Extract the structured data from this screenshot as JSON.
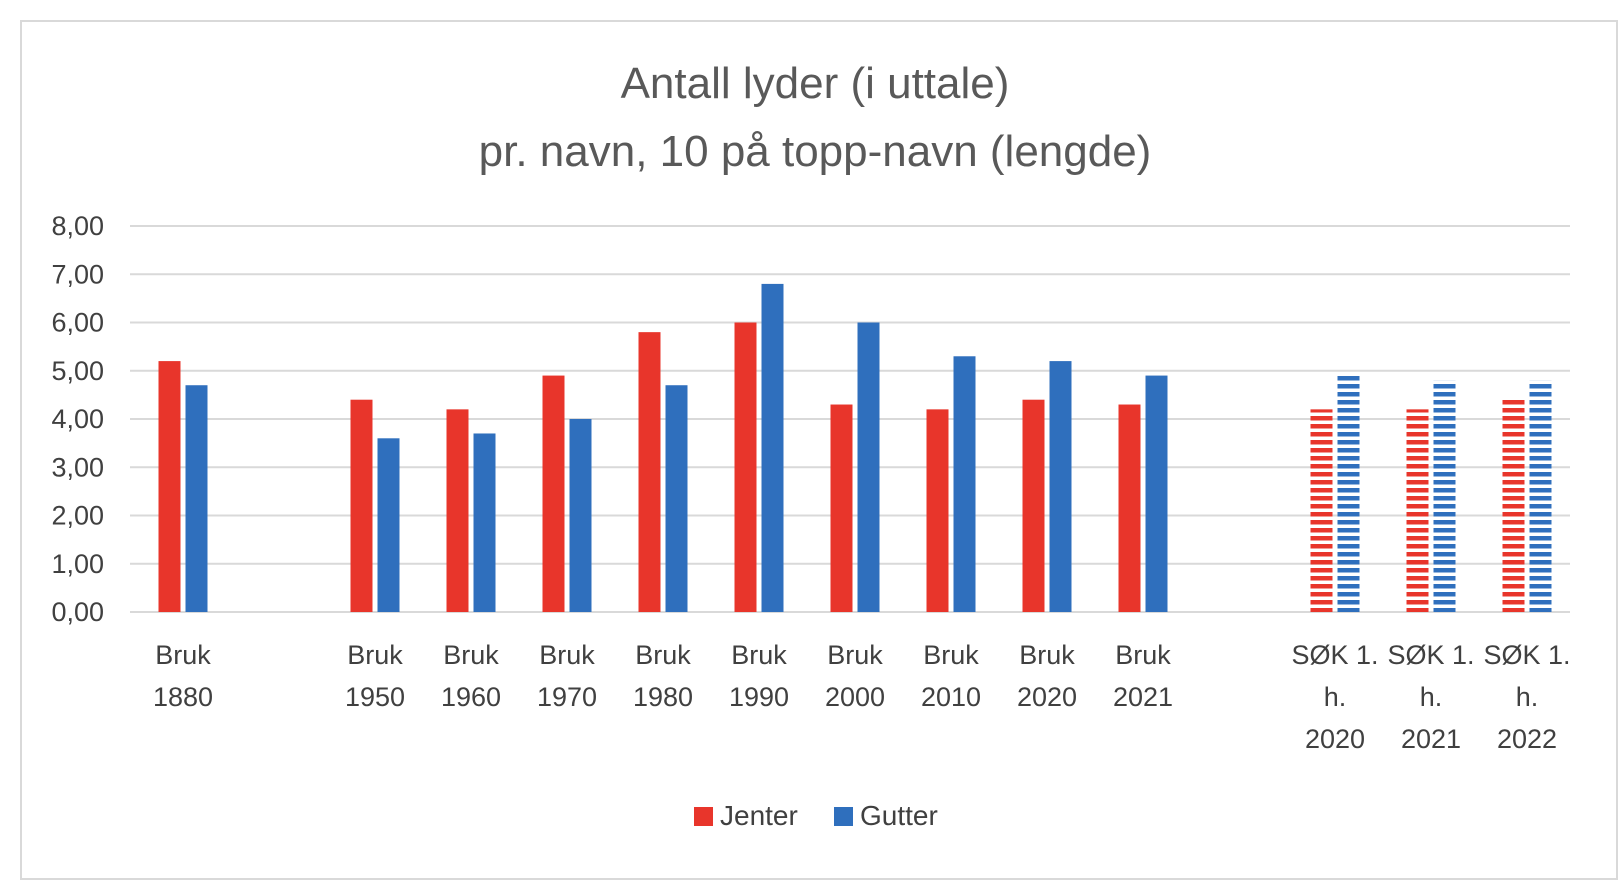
{
  "chart_data": {
    "type": "bar",
    "title": [
      "Antall lyder (i uttale)",
      "pr. navn, 10 på topp-navn (lengde)"
    ],
    "categories": [
      [
        "Bruk",
        "1880"
      ],
      [
        "Bruk",
        "1950"
      ],
      [
        "Bruk",
        "1960"
      ],
      [
        "Bruk",
        "1970"
      ],
      [
        "Bruk",
        "1980"
      ],
      [
        "Bruk",
        "1990"
      ],
      [
        "Bruk",
        "2000"
      ],
      [
        "Bruk",
        "2010"
      ],
      [
        "Bruk",
        "2020"
      ],
      [
        "Bruk",
        "2021"
      ],
      [
        "SØK 1.",
        "h.",
        "2020"
      ],
      [
        "SØK 1.",
        "h.",
        "2021"
      ],
      [
        "SØK 1.",
        "h.",
        "2022"
      ]
    ],
    "series": [
      {
        "name": "Jenter",
        "color": "#e8352b",
        "values": [
          5.2,
          4.4,
          4.2,
          4.9,
          5.8,
          6.0,
          4.3,
          4.2,
          4.4,
          4.3,
          4.2,
          4.2,
          4.45
        ]
      },
      {
        "name": "Gutter",
        "color": "#2f6fbd",
        "values": [
          4.7,
          3.6,
          3.7,
          4.0,
          4.7,
          6.8,
          6.0,
          5.3,
          5.2,
          4.9,
          4.95,
          4.8,
          4.8
        ]
      }
    ],
    "striped_categories": [
      10,
      11,
      12
    ],
    "yticks": [
      "0,00",
      "1,00",
      "2,00",
      "3,00",
      "4,00",
      "5,00",
      "6,00",
      "7,00",
      "8,00"
    ],
    "ylim": [
      0,
      8
    ],
    "grid": true,
    "legend_position": "bottom"
  }
}
